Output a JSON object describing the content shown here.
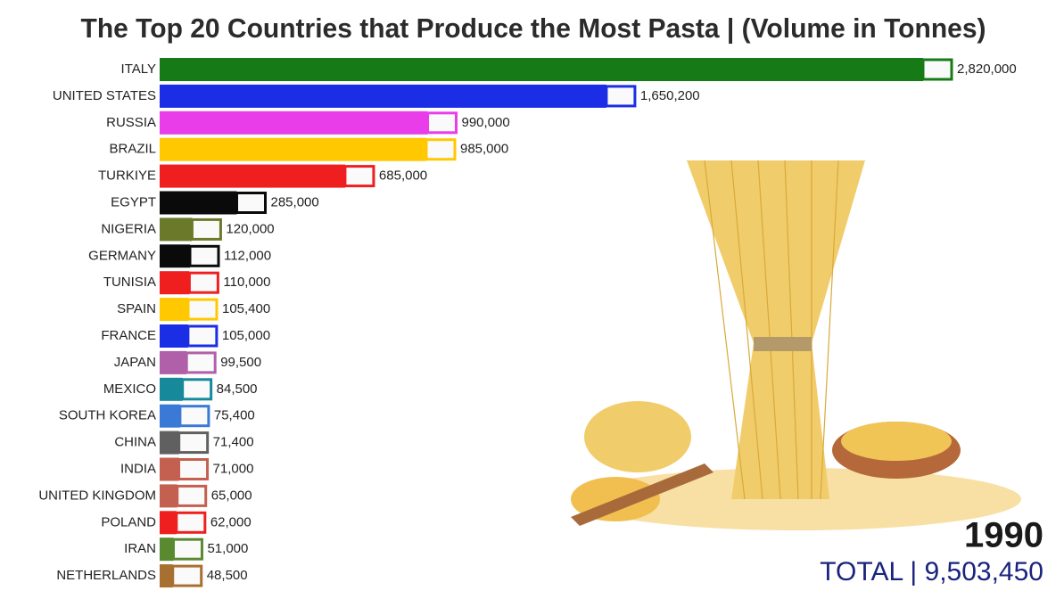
{
  "chart_data": {
    "type": "bar",
    "orientation": "horizontal",
    "title": "The Top 20 Countries that Produce the Most Pasta | (Volume in Tonnes)",
    "categories": [
      "ITALY",
      "UNITED STATES",
      "RUSSIA",
      "BRAZIL",
      "TURKIYE",
      "EGYPT",
      "NIGERIA",
      "GERMANY",
      "TUNISIA",
      "SPAIN",
      "FRANCE",
      "JAPAN",
      "MEXICO",
      "SOUTH KOREA",
      "CHINA",
      "INDIA",
      "UNITED KINGDOM",
      "POLAND",
      "IRAN",
      "NETHERLANDS"
    ],
    "values": [
      2820000,
      1650200,
      990000,
      985000,
      685000,
      285000,
      120000,
      112000,
      110000,
      105400,
      105000,
      99500,
      84500,
      75400,
      71400,
      71000,
      65000,
      62000,
      51000,
      48500
    ],
    "value_labels": [
      "2,820,000",
      "1,650,200",
      "990,000",
      "985,000",
      "685,000",
      "285,000",
      "120,000",
      "112,000",
      "110,000",
      "105,400",
      "105,000",
      "99,500",
      "84,500",
      "75,400",
      "71,400",
      "71,000",
      "65,000",
      "62,000",
      "51,000",
      "48,500"
    ],
    "colors": [
      "#167a16",
      "#1b2ee6",
      "#e83de8",
      "#ffc800",
      "#f01f1f",
      "#0a0a0a",
      "#6b7a2a",
      "#0a0a0a",
      "#f01f1f",
      "#ffc800",
      "#1b2ee6",
      "#b060a8",
      "#16899a",
      "#3a7ad6",
      "#606060",
      "#c4604f",
      "#c4604f",
      "#f01f1f",
      "#5a8a30",
      "#a87030"
    ],
    "year": "1990",
    "total_label": "TOTAL | 9,503,450"
  }
}
